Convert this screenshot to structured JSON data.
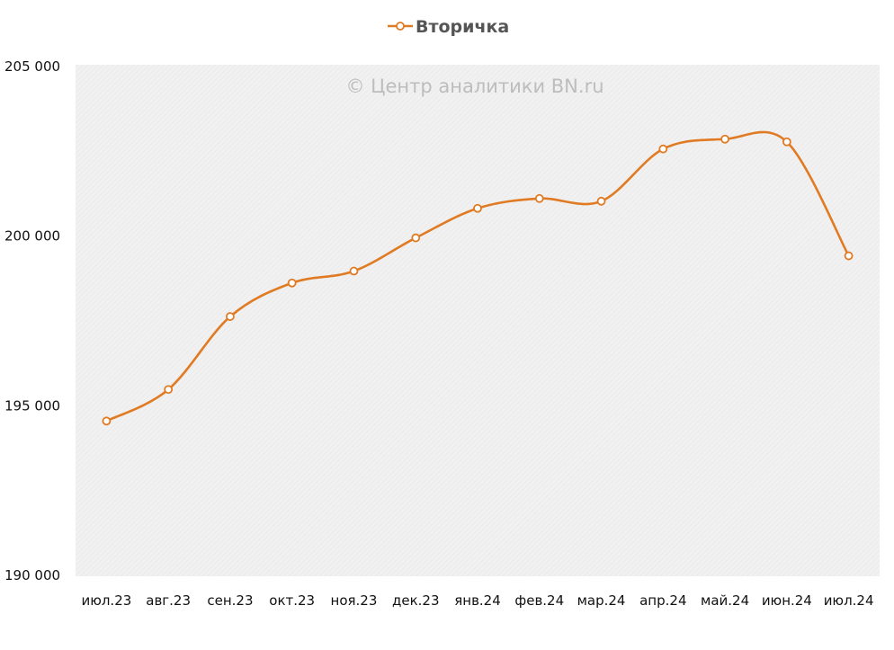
{
  "chart_data": {
    "type": "line",
    "title": "",
    "legend": {
      "label": "Вторичка",
      "position": "top"
    },
    "watermark": "© Центр аналитики BN.ru",
    "categories": [
      "июл.23",
      "авг.23",
      "сен.23",
      "окт.23",
      "ноя.23",
      "дек.23",
      "янв.24",
      "фев.24",
      "мар.24",
      "апр.24",
      "май.24",
      "июн.24",
      "июл.24"
    ],
    "series": [
      {
        "name": "Вторичка",
        "color": "#e07b24",
        "smooth": true,
        "markers": "hollow-circle",
        "values": [
          194550,
          195480,
          197630,
          198620,
          198970,
          199950,
          200820,
          201110,
          201030,
          202570,
          202860,
          202780,
          199420
        ]
      }
    ],
    "ylim": [
      190000,
      205000
    ],
    "yticks": [
      190000,
      195000,
      200000,
      205000
    ],
    "ytick_labels": [
      "190 000",
      "195 000",
      "200 000",
      "205 000"
    ],
    "xlabel": "",
    "ylabel": "",
    "grid": false,
    "plot_background": "#efefef"
  }
}
